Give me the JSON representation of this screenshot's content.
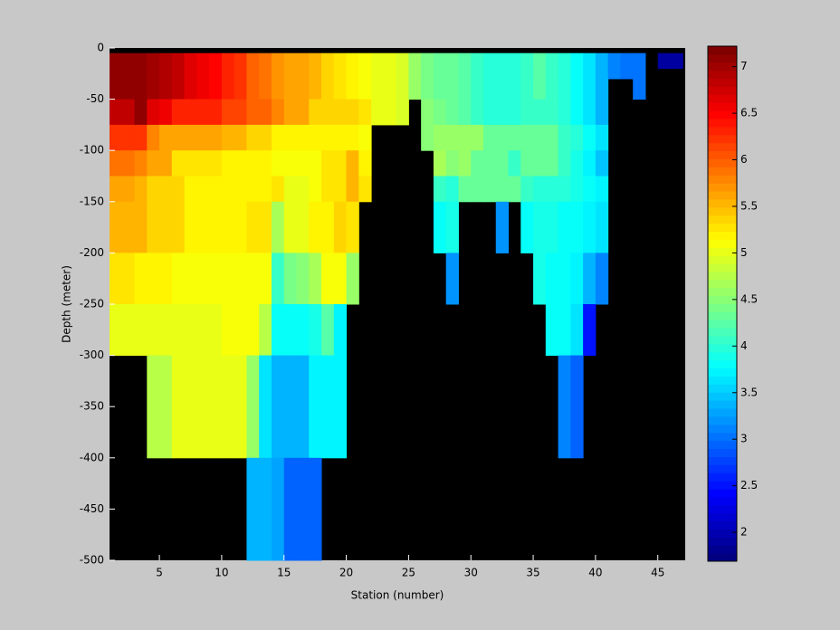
{
  "chart_data": {
    "type": "heatmap",
    "xlabel": "Station (number)",
    "ylabel": "Depth (meter)",
    "x": [
      1,
      2,
      3,
      4,
      5,
      6,
      7,
      8,
      9,
      10,
      11,
      12,
      13,
      14,
      15,
      16,
      17,
      18,
      19,
      20,
      21,
      22,
      23,
      24,
      25,
      26,
      27,
      28,
      29,
      30,
      31,
      32,
      33,
      34,
      35,
      36,
      37,
      38,
      39,
      40,
      41,
      42,
      43,
      44,
      45,
      46
    ],
    "y_edges": [
      -5,
      -20,
      -30,
      -50,
      -75,
      -100,
      -125,
      -150,
      -200,
      -250,
      -300,
      -400,
      -500
    ],
    "values": [
      [
        7.1,
        7.1,
        7.1,
        7.0,
        6.9,
        6.8,
        6.7,
        6.6,
        6.5,
        6.3,
        6.2,
        6.0,
        5.9,
        5.7,
        5.6,
        5.6,
        5.5,
        5.4,
        5.3,
        5.2,
        5.1,
        5.0,
        5.0,
        4.9,
        4.6,
        4.4,
        4.3,
        4.3,
        4.2,
        4.1,
        4.0,
        4.0,
        4.0,
        4.1,
        4.2,
        4.1,
        4.0,
        3.8,
        3.6,
        3.4,
        3.1,
        3.0,
        3.0,
        null,
        1.9,
        1.9
      ],
      [
        7.1,
        7.1,
        7.1,
        7.0,
        6.9,
        6.8,
        6.7,
        6.6,
        6.5,
        6.3,
        6.2,
        6.0,
        5.9,
        5.7,
        5.6,
        5.6,
        5.5,
        5.4,
        5.3,
        5.2,
        5.1,
        5.0,
        5.0,
        4.9,
        4.6,
        4.4,
        4.3,
        4.3,
        4.2,
        4.1,
        4.0,
        4.0,
        4.0,
        4.1,
        4.2,
        4.1,
        4.0,
        3.8,
        3.6,
        3.4,
        3.1,
        3.0,
        3.0,
        null,
        null,
        null
      ],
      [
        7.1,
        7.1,
        7.1,
        7.0,
        6.9,
        6.8,
        6.7,
        6.6,
        6.5,
        6.3,
        6.2,
        6.0,
        5.9,
        5.7,
        5.6,
        5.6,
        5.5,
        5.4,
        5.3,
        5.2,
        5.1,
        5.0,
        5.0,
        4.9,
        4.6,
        4.4,
        4.3,
        4.3,
        4.2,
        4.1,
        4.0,
        4.0,
        4.0,
        4.1,
        4.2,
        4.1,
        4.0,
        3.8,
        3.6,
        3.4,
        null,
        null,
        3.0,
        null,
        null,
        null
      ],
      [
        6.8,
        6.8,
        7.1,
        6.7,
        6.6,
        6.3,
        6.3,
        6.3,
        6.3,
        6.1,
        6.1,
        6.0,
        6.0,
        5.8,
        5.6,
        5.6,
        5.4,
        5.4,
        5.4,
        5.4,
        5.3,
        5.0,
        5.0,
        4.9,
        null,
        4.5,
        4.4,
        4.3,
        4.2,
        4.1,
        4.0,
        4.0,
        4.0,
        4.1,
        4.1,
        4.1,
        4.0,
        3.8,
        3.6,
        3.4,
        null,
        null,
        null,
        null,
        null,
        null
      ],
      [
        6.2,
        6.2,
        6.2,
        5.8,
        5.6,
        5.6,
        5.6,
        5.6,
        5.6,
        5.5,
        5.5,
        5.4,
        5.4,
        5.2,
        5.2,
        5.2,
        5.2,
        5.2,
        5.2,
        5.2,
        5.1,
        null,
        null,
        null,
        null,
        4.5,
        4.6,
        4.6,
        4.6,
        4.6,
        4.3,
        4.3,
        4.3,
        4.3,
        4.3,
        4.3,
        4.1,
        4.0,
        3.8,
        3.6,
        null,
        null,
        null,
        null,
        null,
        null
      ],
      [
        5.9,
        5.9,
        5.8,
        5.6,
        5.6,
        5.3,
        5.3,
        5.3,
        5.3,
        5.2,
        5.2,
        5.2,
        5.2,
        5.1,
        5.1,
        5.1,
        5.1,
        5.3,
        5.3,
        5.5,
        5.2,
        null,
        null,
        null,
        null,
        null,
        4.7,
        4.5,
        4.6,
        4.3,
        4.3,
        4.3,
        4.1,
        4.3,
        4.3,
        4.3,
        4.1,
        3.9,
        3.7,
        3.5,
        null,
        null,
        null,
        null,
        null,
        null
      ],
      [
        5.6,
        5.6,
        5.5,
        5.4,
        5.4,
        5.4,
        5.2,
        5.2,
        5.2,
        5.2,
        5.2,
        5.2,
        5.2,
        5.3,
        5.0,
        5.0,
        5.1,
        5.3,
        5.3,
        5.5,
        5.3,
        null,
        null,
        null,
        null,
        null,
        4.1,
        4.0,
        4.3,
        4.3,
        4.3,
        4.3,
        4.3,
        4.1,
        4.0,
        4.0,
        4.0,
        3.9,
        3.8,
        3.7,
        null,
        null,
        null,
        null,
        null,
        null
      ],
      [
        5.5,
        5.5,
        5.5,
        5.4,
        5.4,
        5.4,
        5.2,
        5.2,
        5.2,
        5.2,
        5.2,
        5.3,
        5.3,
        4.7,
        5.0,
        5.0,
        5.2,
        5.2,
        5.4,
        5.3,
        null,
        null,
        null,
        null,
        null,
        null,
        3.8,
        3.9,
        null,
        null,
        null,
        3.2,
        null,
        3.8,
        3.9,
        3.9,
        3.8,
        3.8,
        3.7,
        3.6,
        null,
        null,
        null,
        null,
        null,
        null
      ],
      [
        5.3,
        5.3,
        5.2,
        5.2,
        5.2,
        5.1,
        5.1,
        5.1,
        5.1,
        5.1,
        5.1,
        5.1,
        5.1,
        4.1,
        4.4,
        4.5,
        4.7,
        5.1,
        5.1,
        4.6,
        null,
        null,
        null,
        null,
        null,
        null,
        null,
        3.2,
        null,
        null,
        null,
        null,
        null,
        null,
        3.9,
        3.8,
        3.8,
        3.7,
        3.4,
        3.1,
        null,
        null,
        null,
        null,
        null,
        null
      ],
      [
        5.0,
        5.0,
        5.0,
        5.0,
        5.0,
        5.0,
        5.0,
        5.0,
        5.0,
        5.1,
        5.1,
        5.1,
        4.8,
        3.8,
        3.8,
        3.8,
        3.9,
        4.2,
        3.7,
        null,
        null,
        null,
        null,
        null,
        null,
        null,
        null,
        null,
        null,
        null,
        null,
        null,
        null,
        null,
        null,
        3.8,
        3.8,
        3.6,
        2.5,
        null,
        null,
        null,
        null,
        null,
        null,
        null
      ],
      [
        null,
        null,
        null,
        4.8,
        4.8,
        5.0,
        5.0,
        5.0,
        5.0,
        5.0,
        5.0,
        4.6,
        3.6,
        3.4,
        3.4,
        3.4,
        3.7,
        3.7,
        3.7,
        null,
        null,
        null,
        null,
        null,
        null,
        null,
        null,
        null,
        null,
        null,
        null,
        null,
        null,
        null,
        null,
        null,
        3.1,
        2.9,
        null,
        null,
        null,
        null,
        null,
        null,
        null,
        null
      ],
      [
        null,
        null,
        null,
        null,
        null,
        null,
        null,
        null,
        null,
        null,
        null,
        3.4,
        3.4,
        3.3,
        2.9,
        2.9,
        2.9,
        null,
        null,
        null,
        null,
        null,
        null,
        null,
        null,
        null,
        null,
        null,
        null,
        null,
        null,
        null,
        null,
        null,
        null,
        null,
        null,
        null,
        null,
        null,
        null,
        null,
        null,
        null,
        null,
        null
      ]
    ],
    "xlim": [
      1,
      47.2
    ],
    "ylim": [
      -500,
      0
    ],
    "xticks": [
      5,
      10,
      15,
      20,
      25,
      30,
      35,
      40,
      45
    ],
    "yticks": [
      0,
      -50,
      -100,
      -150,
      -200,
      -250,
      -300,
      -350,
      -400,
      -450,
      -500
    ],
    "clim": [
      1.69,
      7.22
    ],
    "colorbar_ticks": [
      2,
      2.5,
      3,
      3.5,
      4,
      4.5,
      5,
      5.5,
      6,
      6.5,
      7
    ],
    "colormap": "jet",
    "background": "#000000"
  }
}
